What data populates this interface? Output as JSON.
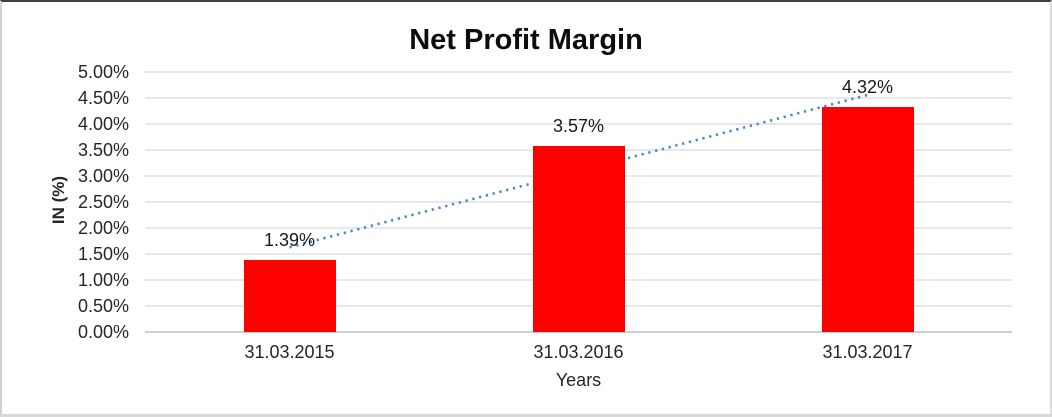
{
  "chart_data": {
    "type": "bar",
    "title": "Net Profit Margin",
    "categories": [
      "31.03.2015",
      "31.03.2016",
      "31.03.2017"
    ],
    "values": [
      1.39,
      3.57,
      4.32
    ],
    "data_labels": [
      "1.39%",
      "3.57%",
      "4.32%"
    ],
    "xlabel": "Years",
    "ylabel": "IN (%)",
    "ylim": [
      0,
      5
    ],
    "ytick_step": 0.5,
    "ytick_suffix": "%",
    "ytick_decimals": 2,
    "gridlines": true,
    "legend": "none",
    "bar_color": "#FF0000",
    "gridline_color": "#D9D9D9",
    "axis_line_color": "#BFBFBF",
    "text_color": "#262626",
    "trendline": {
      "type": "linear",
      "style": "dotted",
      "color": "#4F87C5"
    }
  }
}
